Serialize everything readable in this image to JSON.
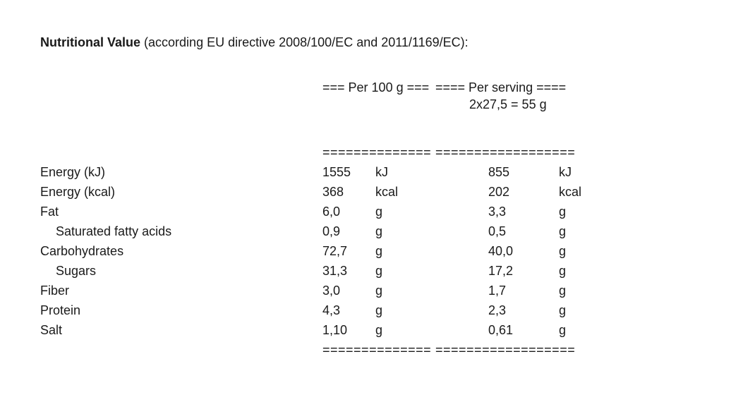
{
  "document": {
    "title_bold": "Nutritional Value",
    "title_rest": " (according EU directive 2008/100/EC and 2011/1169/EC):"
  },
  "table": {
    "col1_header": "=== Per 100 g ===",
    "col2_header": "==== Per serving ====",
    "col2_subheader": "2x27,5 = 55 g",
    "col1_rule": "==============",
    "col2_rule": "==================",
    "rows": [
      {
        "label": "Energy (kJ)",
        "v1": "1555",
        "u1": "kJ",
        "v2": "855",
        "u2": "kJ"
      },
      {
        "label": "Energy (kcal)",
        "v1": "368",
        "u1": "kcal",
        "v2": "202",
        "u2": "kcal"
      },
      {
        "label": "Fat",
        "v1": "6,0",
        "u1": "g",
        "v2": "3,3",
        "u2": "g"
      },
      {
        "label": "Saturated fatty acids",
        "v1": "0,9",
        "u1": "g",
        "v2": "0,5",
        "u2": "g"
      },
      {
        "label": "Carbohydrates",
        "v1": "72,7",
        "u1": "g",
        "v2": "40,0",
        "u2": "g"
      },
      {
        "label": "Sugars",
        "v1": "31,3",
        "u1": "g",
        "v2": "17,2",
        "u2": "g"
      },
      {
        "label": "Fiber",
        "v1": "3,0",
        "u1": "g",
        "v2": "1,7",
        "u2": "g"
      },
      {
        "label": "Protein",
        "v1": "4,3",
        "u1": "g",
        "v2": "2,3",
        "u2": "g"
      },
      {
        "label": "Salt",
        "v1": "1,10",
        "u1": "g",
        "v2": "0,61",
        "u2": "g"
      }
    ]
  }
}
